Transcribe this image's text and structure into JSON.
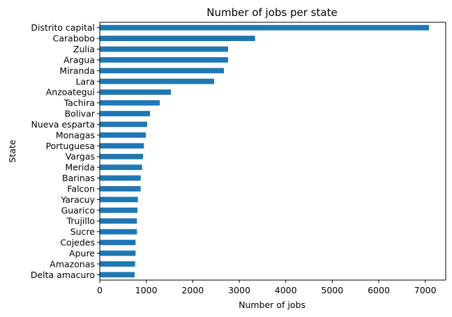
{
  "chart_data": {
    "type": "bar",
    "orientation": "horizontal",
    "title": "Number of jobs per state",
    "xlabel": "Number of jobs",
    "ylabel": "State",
    "categories": [
      "Distrito capital",
      "Carabobo",
      "Zulia",
      "Aragua",
      "Miranda",
      "Lara",
      "Anzoategui",
      "Tachira",
      "Bolivar",
      "Nueva esparta",
      "Monagas",
      "Portuguesa",
      "Vargas",
      "Merida",
      "Barinas",
      "Falcon",
      "Yaracuy",
      "Guarico",
      "Trujillo",
      "Sucre",
      "Cojedes",
      "Apure",
      "Amazonas",
      "Delta amacuro"
    ],
    "values": [
      7080,
      3340,
      2760,
      2760,
      2670,
      2460,
      1530,
      1290,
      1080,
      1020,
      990,
      950,
      930,
      910,
      880,
      880,
      820,
      810,
      800,
      800,
      770,
      770,
      760,
      750
    ],
    "xlim": [
      0,
      7440
    ],
    "xticks": [
      "0",
      "1000",
      "2000",
      "3000",
      "4000",
      "5000",
      "6000",
      "7000"
    ],
    "grid": false,
    "legend": "none",
    "colors": {
      "bar": "#1f77b4",
      "axis": "#000000"
    }
  }
}
